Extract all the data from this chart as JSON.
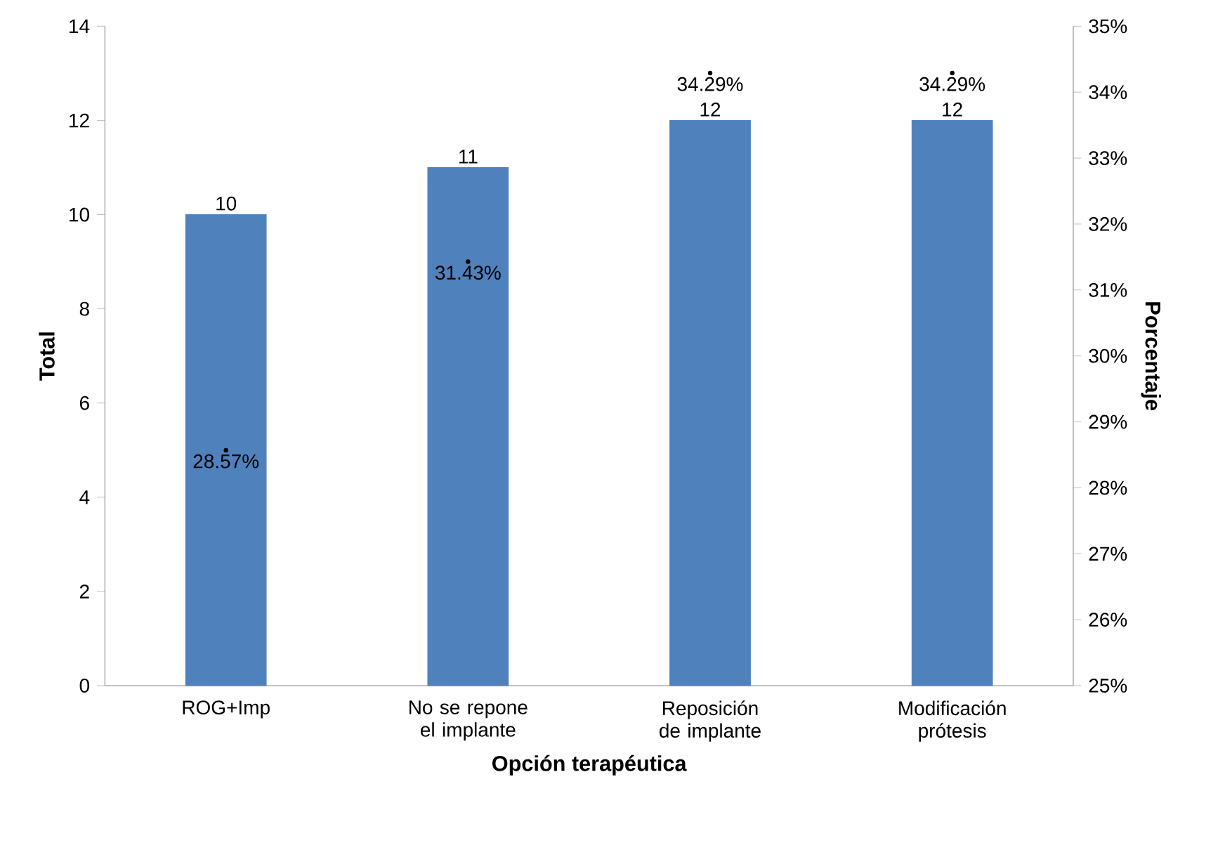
{
  "chart_data": {
    "type": "bar",
    "xlabel": "Opción terapéutica",
    "ylabel": "Total",
    "y2label": "Porcentaje",
    "categories": [
      "ROG+Imp",
      "No se repone el implante",
      "Reposición de implante",
      "Modificación prótesis"
    ],
    "series": [
      {
        "color": "#4f81bd",
        "values": [
          10,
          11,
          12,
          12
        ],
        "value_labels": [
          "10",
          "11",
          "12",
          "12"
        ]
      },
      {
        "type": "scatter",
        "axis": "y2",
        "marker": "circle",
        "color": "#000000",
        "values": [
          28.57,
          31.43,
          34.29,
          34.29
        ],
        "value_labels": [
          "28.57%",
          "31.43%",
          "34.29%",
          "34.29%"
        ]
      }
    ],
    "ylim": [
      0,
      14
    ],
    "yticks": [
      0,
      2,
      4,
      6,
      8,
      10,
      12,
      14
    ],
    "y2lim": [
      25,
      35
    ],
    "y2ticks": [
      {
        "value": 25,
        "label": "25%"
      },
      {
        "value": 26,
        "label": "26%"
      },
      {
        "value": 27,
        "label": "27%"
      },
      {
        "value": 28,
        "label": "28%"
      },
      {
        "value": 29,
        "label": "29%"
      },
      {
        "value": 30,
        "label": "30%"
      },
      {
        "value": 31,
        "label": "31%"
      },
      {
        "value": 32,
        "label": "32%"
      },
      {
        "value": 33,
        "label": "33%"
      },
      {
        "value": 34,
        "label": "34%"
      },
      {
        "value": 35,
        "label": "35%"
      }
    ],
    "grid": false,
    "legend": false
  }
}
